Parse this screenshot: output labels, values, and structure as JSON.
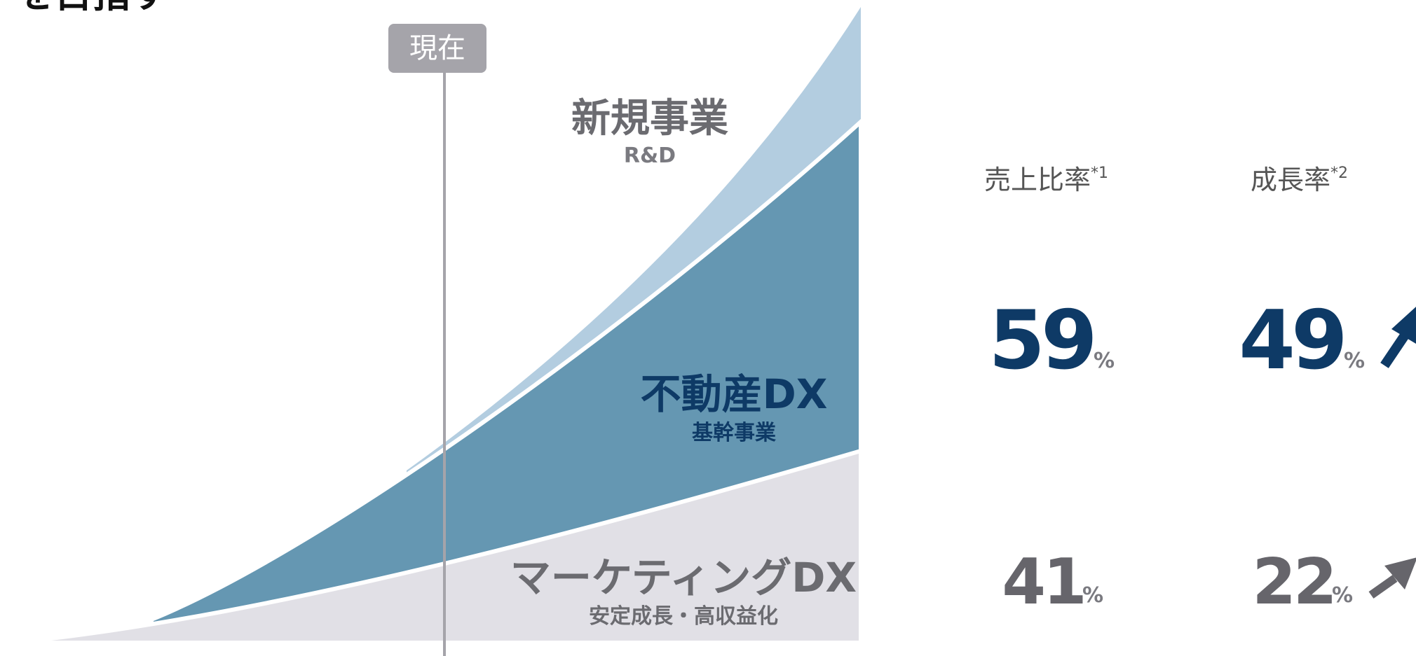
{
  "header": {
    "title": "を目指す"
  },
  "marker": {
    "label": "現在"
  },
  "segments": [
    {
      "name": "新規事業",
      "sub": "R&D"
    },
    {
      "name": "不動産DX",
      "sub": "基幹事業"
    },
    {
      "name": "マーケティングDX",
      "sub": "安定成長・高収益化"
    }
  ],
  "columns": [
    {
      "label": "売上比率",
      "note": "*1"
    },
    {
      "label": "成長率",
      "note": "*2"
    }
  ],
  "rows": [
    [
      59,
      49
    ],
    [
      41,
      22
    ]
  ],
  "unit": "%"
}
